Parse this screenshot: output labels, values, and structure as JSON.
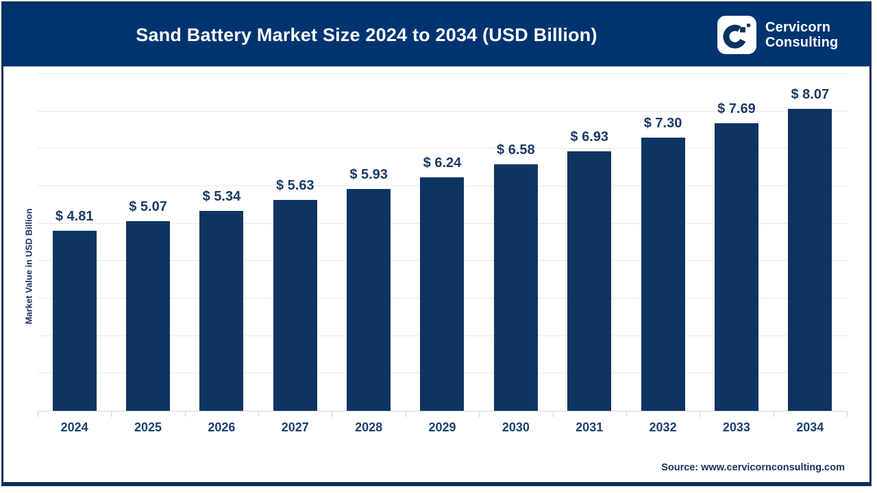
{
  "header": {
    "title": "Sand Battery Market Size 2024 to 2034 (USD Billion)",
    "brand": {
      "line1": "Cervicorn",
      "line2": "Consulting"
    }
  },
  "chart_data": {
    "type": "bar",
    "title": "Sand Battery Market Size 2024 to 2034 (USD Billion)",
    "categories": [
      "2024",
      "2025",
      "2026",
      "2027",
      "2028",
      "2029",
      "2030",
      "2031",
      "2032",
      "2033",
      "2034"
    ],
    "values": [
      4.81,
      5.07,
      5.34,
      5.63,
      5.93,
      6.24,
      6.58,
      6.93,
      7.3,
      7.69,
      8.07
    ],
    "value_labels": [
      "$ 4.81",
      "$ 5.07",
      "$ 5.34",
      "$ 5.63",
      "$ 5.93",
      "$ 6.24",
      "$ 6.58",
      "$ 6.93",
      "$ 7.30",
      "$ 7.69",
      "$ 8.07"
    ],
    "xlabel": "",
    "ylabel": "Market Value in USD Billion",
    "ylim": [
      0,
      9.2
    ],
    "gridline_step": 1,
    "grid": true,
    "legend_position": "none",
    "bar_color": "#0e3463"
  },
  "footer": {
    "source": "Source: www.cervicornconsulting.com"
  },
  "colors": {
    "header_bg": "#003471",
    "frame_border": "#0b2f5e",
    "bar": "#0e3463",
    "value_label": "#1b3a69",
    "category_label": "#1a4073",
    "source_text": "#16305e",
    "gridline": "#e9e9e9",
    "axis_line": "#d9d9d9",
    "title_text": "#ffffff",
    "logo_mark": "#0b315f"
  }
}
